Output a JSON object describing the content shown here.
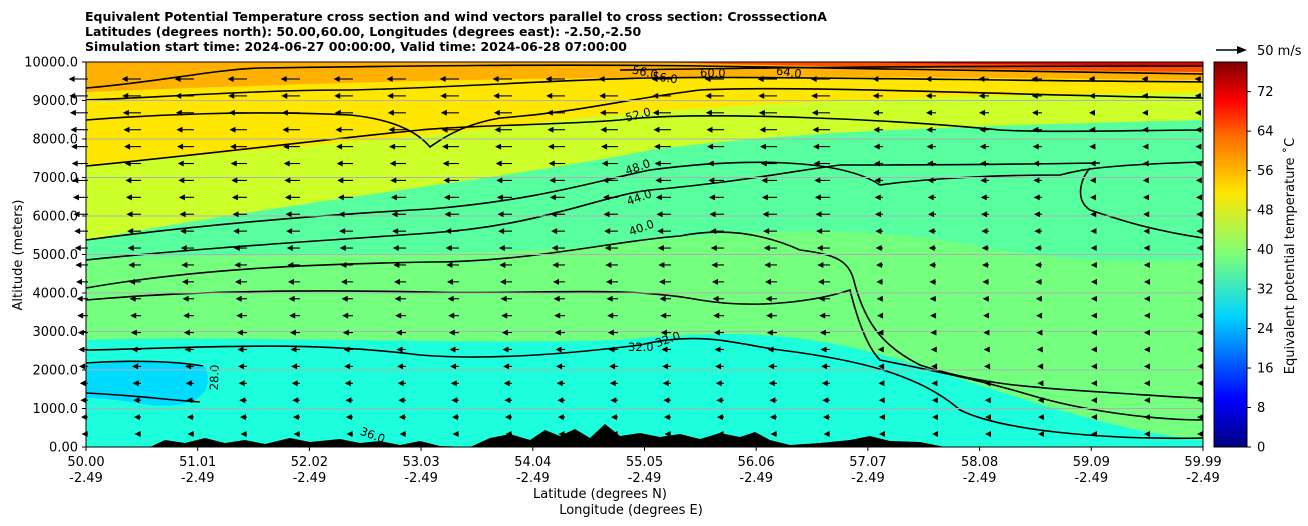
{
  "chart_data": {
    "type": "contour",
    "title_lines": [
      "Equivalent Potential Temperature cross section and wind vectors parallel to cross section: CrosssectionA",
      "Latitudes (degrees north): 50.00,60.00, Longitudes (degrees east): -2.50,-2.50",
      "Simulation start time: 2024-06-27 00:00:00, Valid time: 2024-06-28 07:00:00"
    ],
    "ylabel": "Altitude (meters)",
    "xlabel_lines": [
      "Latitude (degrees N)",
      "Longitude (degrees E)"
    ],
    "ylim": [
      0,
      10000
    ],
    "y_ticks": [
      "0.00",
      "1000.0",
      "2000.0",
      "3000.0",
      "4000.0",
      "5000.0",
      "6000.0",
      "7000.0",
      "8000.0",
      "9000.0",
      "10000.0"
    ],
    "x_ticks": [
      {
        "lat": "50.00",
        "lon": "-2.49"
      },
      {
        "lat": "51.01",
        "lon": "-2.49"
      },
      {
        "lat": "52.02",
        "lon": "-2.49"
      },
      {
        "lat": "53.03",
        "lon": "-2.49"
      },
      {
        "lat": "54.04",
        "lon": "-2.49"
      },
      {
        "lat": "55.05",
        "lon": "-2.49"
      },
      {
        "lat": "56.06",
        "lon": "-2.49"
      },
      {
        "lat": "57.07",
        "lon": "-2.49"
      },
      {
        "lat": "58.08",
        "lon": "-2.49"
      },
      {
        "lat": "59.09",
        "lon": "-2.49"
      },
      {
        "lat": "59.99",
        "lon": "-2.49"
      }
    ],
    "colorbar": {
      "label": "Equivalent potential temperature ˚C",
      "min": 0,
      "max": 78,
      "ticks": [
        "0",
        "8",
        "16",
        "24",
        "32",
        "40",
        "48",
        "56",
        "64",
        "72"
      ]
    },
    "quiver_key": "50 m/s",
    "contour_labels": [
      "28.0",
      "32.0",
      "32.0",
      "36.0",
      "40.0",
      "44.0",
      "48.0",
      "52.0",
      "56.0",
      "56.0",
      "60.0",
      "64.0"
    ],
    "contour_levels": [
      28,
      32,
      36,
      40,
      44,
      48,
      52,
      56,
      60,
      64,
      68,
      72
    ],
    "wind": "westward (southward along section), roughly uniform; strongest aloft, weakening toward the north and near the ground"
  }
}
